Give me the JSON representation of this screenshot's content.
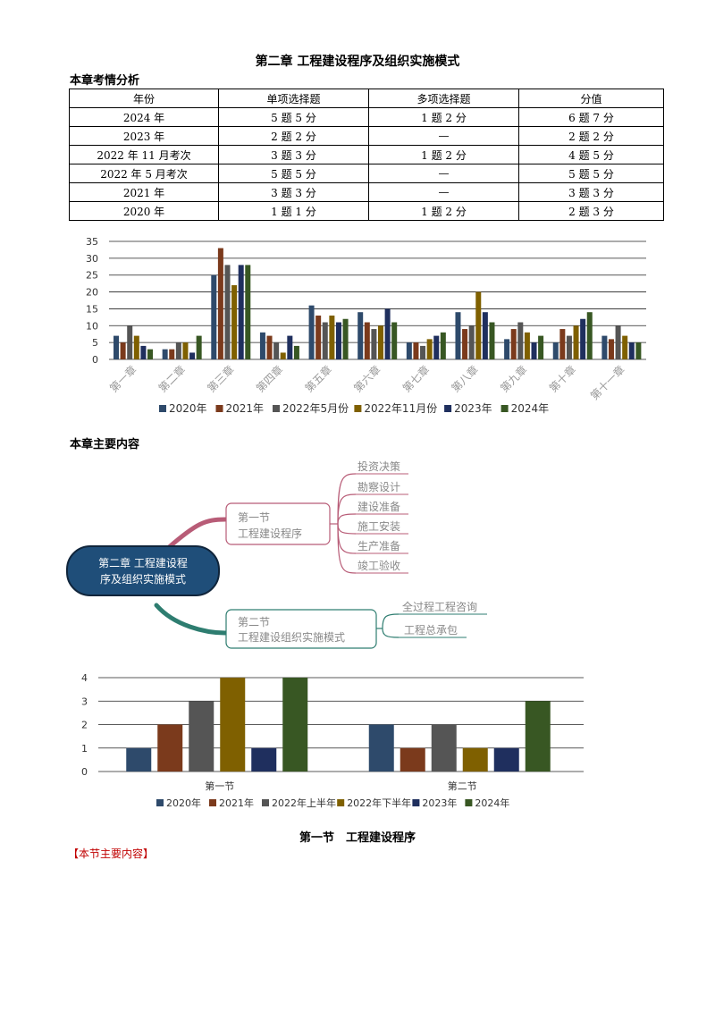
{
  "title": "第二章 工程建设程序及组织实施模式",
  "analysis_heading": "本章考情分析",
  "table": {
    "headers": [
      "年份",
      "单项选择题",
      "多项选择题",
      "分值"
    ],
    "rows": [
      [
        "2024 年",
        "5 题 5 分",
        "1 题 2 分",
        "6 题 7 分"
      ],
      [
        "2023 年",
        "2 题 2 分",
        "—",
        "2 题 2 分"
      ],
      [
        "2022 年 11 月考次",
        "3 题 3 分",
        "1 题 2 分",
        "4 题 5 分"
      ],
      [
        "2022 年 5 月考次",
        "5 题 5 分",
        "—",
        "5 题 5 分"
      ],
      [
        "2021 年",
        "3 题 3 分",
        "—",
        "3 题 3 分"
      ],
      [
        "2020 年",
        "1 题 1 分",
        "1 题 2 分",
        "2 题 3 分"
      ]
    ]
  },
  "main_heading": "本章主要内容",
  "mindmap": {
    "root": "第二章 工程建设程序及组织实施模式",
    "branch1": {
      "label": "第一节 工程建设程序",
      "leaves": [
        "投资决策",
        "勘察设计",
        "建设准备",
        "施工安装",
        "生产准备",
        "竣工验收"
      ]
    },
    "branch2": {
      "label": "第二节 工程建设组织实施模式",
      "leaves": [
        "全过程工程咨询",
        "工程总承包"
      ]
    },
    "colors": {
      "root_fill": "#1f4e79",
      "branch1": "#b85c77",
      "branch2": "#2e7d70"
    }
  },
  "section_title": "第一节　工程建设程序",
  "section_tag": "【本节主要内容】",
  "chart_data": [
    {
      "type": "bar",
      "categories": [
        "第一章",
        "第二章",
        "第三章",
        "第四章",
        "第五章",
        "第六章",
        "第七章",
        "第八章",
        "第九章",
        "第十章",
        "第十一章"
      ],
      "series": [
        {
          "name": "2020年",
          "color": "#2e4a6b",
          "values": [
            7,
            3,
            25,
            8,
            16,
            14,
            5,
            14,
            6,
            5,
            7
          ]
        },
        {
          "name": "2021年",
          "color": "#7b3a1c",
          "values": [
            5,
            3,
            33,
            7,
            13,
            11,
            5,
            9,
            9,
            9,
            6
          ]
        },
        {
          "name": "2022年5月份",
          "color": "#555555",
          "values": [
            10,
            5,
            28,
            5,
            11,
            9,
            4,
            10,
            11,
            7,
            10
          ]
        },
        {
          "name": "2022年11月份",
          "color": "#7f6000",
          "values": [
            7,
            5,
            22,
            2,
            13,
            10,
            6,
            20,
            8,
            10,
            7
          ]
        },
        {
          "name": "2023年",
          "color": "#1f2f5e",
          "values": [
            4,
            2,
            28,
            7,
            11,
            15,
            7,
            14,
            5,
            12,
            5
          ]
        },
        {
          "name": "2024年",
          "color": "#385723",
          "values": [
            3,
            7,
            28,
            4,
            12,
            11,
            8,
            11,
            7,
            14,
            5
          ]
        }
      ],
      "ylim": [
        0,
        35
      ],
      "yticks": [
        0,
        5,
        10,
        15,
        20,
        25,
        30,
        35
      ],
      "grid": true,
      "legend": "bottom"
    },
    {
      "type": "bar",
      "categories": [
        "第一节",
        "第二节"
      ],
      "series": [
        {
          "name": "2020年",
          "color": "#2e4a6b",
          "values": [
            1,
            2
          ]
        },
        {
          "name": "2021年",
          "color": "#7b3a1c",
          "values": [
            2,
            1
          ]
        },
        {
          "name": "2022年上半年",
          "color": "#555555",
          "values": [
            3,
            2
          ]
        },
        {
          "name": "2022年下半年",
          "color": "#7f6000",
          "values": [
            4,
            1
          ]
        },
        {
          "name": "2023年",
          "color": "#1f2f5e",
          "values": [
            1,
            1
          ]
        },
        {
          "name": "2024年",
          "color": "#385723",
          "values": [
            4,
            3
          ]
        }
      ],
      "ylim": [
        0,
        4
      ],
      "yticks": [
        0,
        1,
        2,
        3,
        4
      ],
      "grid": true,
      "legend": "bottom"
    }
  ]
}
